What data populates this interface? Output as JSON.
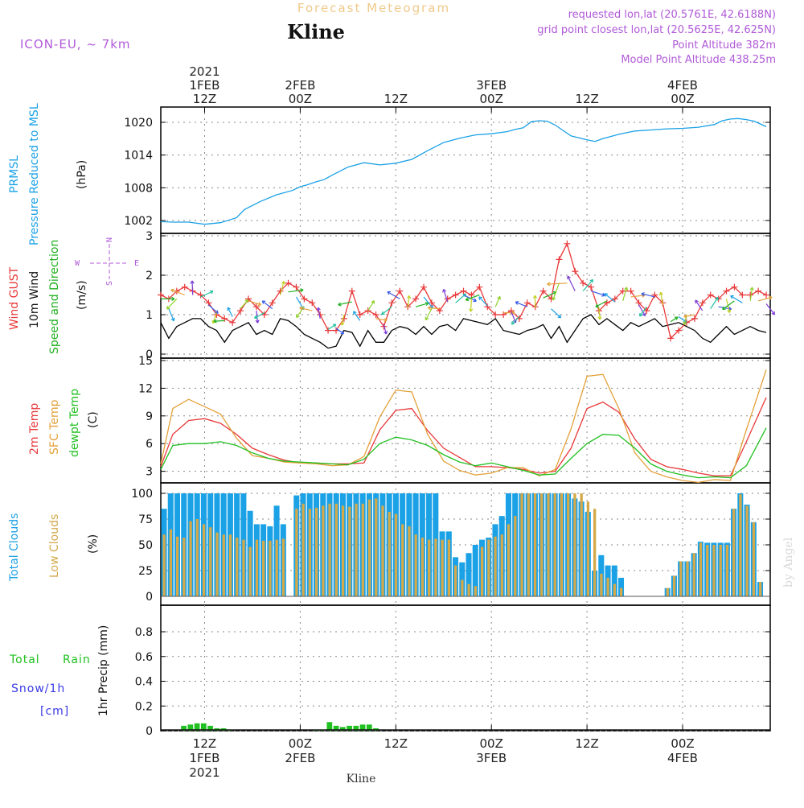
{
  "header": {
    "product": "Forecast Meteogram",
    "location": "Kline",
    "model": "ICON-EU, ~ 7km",
    "requested": "requested lon,lat (20.5761E, 42.6188N)",
    "closest": "grid point closest lon,lat (20.5625E, 42.625N)",
    "point_alt": "Point Altitude 382m",
    "model_alt": "Model Point Altitude 438.25m",
    "footer": "Kline",
    "watermark": "by Angel"
  },
  "colors": {
    "pressure": "#1ba1e6",
    "gust": "#e8393a",
    "wind10": "#000000",
    "dir": "#20b020",
    "t2m": "#e8393a",
    "sfc": "#e3a13a",
    "dew": "#20c020",
    "total_clouds": "#1ba1e6",
    "low_clouds": "#d4a94a",
    "rain": "#20c020",
    "snow": "#3a3ae6",
    "purple": "#b05ad8"
  },
  "time_axis": {
    "top_labels": [
      {
        "t": 0,
        "lines": [
          "2021",
          "1FEB",
          "12Z"
        ]
      },
      {
        "t": 12,
        "lines": [
          "2FEB",
          "00Z"
        ]
      },
      {
        "t": 24,
        "lines": [
          "12Z"
        ]
      },
      {
        "t": 36,
        "lines": [
          "3FEB",
          "00Z"
        ]
      },
      {
        "t": 48,
        "lines": [
          "12Z"
        ]
      },
      {
        "t": 60,
        "lines": [
          "4FEB",
          "00Z"
        ]
      }
    ],
    "bottom_labels": [
      {
        "t": 0,
        "lines": [
          "12Z",
          "1FEB",
          "2021"
        ]
      },
      {
        "t": 12,
        "lines": [
          "00Z",
          "2FEB"
        ]
      },
      {
        "t": 24,
        "lines": [
          "12Z"
        ]
      },
      {
        "t": 36,
        "lines": [
          "00Z",
          "3FEB"
        ]
      },
      {
        "t": 48,
        "lines": [
          "12Z"
        ]
      },
      {
        "t": 60,
        "lines": [
          "00Z",
          "4FEB"
        ]
      }
    ]
  },
  "panels": {
    "pressure": {
      "labels": [
        "PRMSL",
        "Pressure Reduced to MSL",
        "(hPa)"
      ]
    },
    "wind": {
      "labels": [
        "Wind GUST",
        "10m Wind",
        "Speed and Direction",
        "(m/s)"
      ],
      "compass": {
        "n": "N",
        "s": "S",
        "e": "E",
        "w": "W"
      }
    },
    "temp": {
      "labels": [
        "2m Temp",
        "SFC Temp",
        "dewpt Temp",
        "(C)"
      ]
    },
    "clouds": {
      "labels": [
        "Total Clouds",
        "Low Clouds",
        "(%)"
      ]
    },
    "precip": {
      "labels": [
        "1hr Precip (mm)",
        "Total",
        "Rain",
        "Snow/1h",
        "[cm]"
      ]
    }
  },
  "chart_data": [
    {
      "name": "pressure",
      "type": "line",
      "title": "PRMSL Pressure Reduced to MSL",
      "ylabel": "(hPa)",
      "x_hours_from_1FEB12Z": [
        -5.5,
        -4,
        -2,
        0,
        2,
        4,
        5,
        7,
        9,
        11,
        12,
        13,
        14,
        15,
        16,
        18,
        20,
        22,
        24,
        26,
        28,
        30,
        32,
        34,
        36,
        37,
        38,
        39,
        40,
        41,
        42,
        43,
        44,
        46,
        48,
        49,
        50,
        52,
        54,
        56,
        58,
        60,
        62,
        64,
        65,
        66,
        67,
        68,
        69,
        70.5
      ],
      "values": [
        1001.8,
        1001.7,
        1001.7,
        1001.3,
        1001.6,
        1002.5,
        1004.0,
        1005.5,
        1006.7,
        1007.5,
        1008.2,
        1008.6,
        1009.1,
        1009.5,
        1010.3,
        1011.8,
        1012.6,
        1012.2,
        1012.5,
        1013.2,
        1014.8,
        1016.3,
        1017.1,
        1017.7,
        1017.9,
        1018.1,
        1018.3,
        1018.7,
        1019.0,
        1020.1,
        1020.3,
        1020.2,
        1019.5,
        1017.5,
        1016.8,
        1016.5,
        1017.0,
        1017.8,
        1018.4,
        1018.6,
        1018.8,
        1018.9,
        1019.1,
        1019.6,
        1020.3,
        1020.6,
        1020.7,
        1020.5,
        1020.2,
        1019.2
      ],
      "yticks": [
        1002,
        1008,
        1014,
        1020
      ],
      "ylim": [
        1001,
        1021
      ]
    },
    {
      "name": "wind",
      "type": "line",
      "ylabel": "(m/s)",
      "ylim": [
        0,
        3
      ],
      "yticks": [
        0,
        1,
        2,
        3
      ],
      "x_hours_from_1FEB12Z": [
        -5.5,
        -4.5,
        -3.5,
        -2.5,
        -1.5,
        -0.5,
        0.5,
        1.5,
        2.5,
        3.5,
        4.5,
        5.5,
        6.5,
        7.5,
        8.5,
        9.5,
        10.5,
        11.5,
        12.5,
        13.5,
        14.5,
        15.5,
        16.5,
        17.5,
        18.5,
        19.5,
        20.5,
        21.5,
        22.5,
        23.5,
        24.5,
        25.5,
        26.5,
        27.5,
        28.5,
        29.5,
        30.5,
        31.5,
        32.5,
        33.5,
        34.5,
        35.5,
        36.5,
        37.5,
        38.5,
        39.5,
        40.5,
        41.5,
        42.5,
        43.5,
        44.5,
        45.5,
        46.5,
        47.5,
        48.5,
        49.5,
        50.5,
        51.5,
        52.5,
        53.5,
        54.5,
        55.5,
        56.5,
        57.5,
        58.5,
        59.5,
        60.5,
        61.5,
        62.5,
        63.5,
        64.5,
        65.5,
        66.5,
        67.5,
        68.5,
        69.5,
        70.5
      ],
      "series": [
        {
          "name": "10m Wind",
          "values": [
            0.8,
            0.4,
            0.7,
            0.8,
            0.9,
            0.9,
            0.7,
            0.6,
            0.3,
            0.6,
            0.7,
            0.8,
            0.5,
            0.6,
            0.5,
            0.9,
            0.85,
            0.7,
            0.5,
            0.4,
            0.3,
            0.15,
            0.2,
            0.6,
            0.55,
            0.2,
            0.6,
            0.3,
            0.3,
            0.6,
            0.7,
            0.65,
            0.5,
            0.7,
            0.5,
            0.7,
            0.75,
            0.6,
            0.9,
            0.85,
            0.8,
            0.75,
            0.9,
            0.6,
            0.55,
            0.5,
            0.6,
            0.65,
            0.75,
            0.4,
            0.7,
            0.3,
            0.6,
            0.9,
            1.0,
            0.75,
            0.9,
            0.75,
            0.6,
            0.8,
            0.7,
            0.8,
            0.9,
            0.7,
            0.75,
            0.8,
            0.7,
            0.6,
            0.4,
            0.3,
            0.5,
            0.7,
            0.5,
            0.6,
            0.7,
            0.6,
            0.55
          ]
        },
        {
          "name": "Wind GUST",
          "values": [
            1.5,
            1.4,
            1.6,
            1.7,
            1.6,
            1.5,
            1.3,
            1.0,
            0.9,
            0.8,
            1.1,
            1.4,
            1.2,
            1.0,
            1.3,
            1.6,
            1.8,
            1.7,
            1.4,
            1.3,
            1.0,
            0.6,
            0.6,
            0.9,
            1.6,
            1.0,
            1.1,
            1.0,
            0.7,
            1.3,
            1.6,
            1.2,
            1.4,
            1.7,
            1.3,
            1.1,
            1.4,
            1.5,
            1.6,
            1.5,
            1.7,
            1.2,
            1.0,
            1.0,
            1.1,
            0.9,
            1.3,
            1.2,
            1.6,
            1.4,
            2.4,
            2.8,
            2.1,
            1.8,
            1.7,
            1.1,
            1.3,
            1.4,
            1.6,
            1.6,
            1.3,
            1.1,
            1.5,
            1.3,
            0.4,
            0.6,
            0.8,
            0.9,
            1.3,
            1.5,
            1.4,
            1.6,
            1.7,
            1.5,
            1.5,
            1.6,
            1.5
          ]
        }
      ]
    },
    {
      "name": "temperature",
      "type": "line",
      "ylabel": "(C)",
      "ylim": [
        0.8,
        15
      ],
      "yticks": [
        3,
        6,
        9,
        12,
        15
      ],
      "x_hours_from_1FEB12Z": [
        -5.5,
        -4,
        -2,
        0,
        2,
        4,
        6,
        8,
        10,
        12,
        14,
        16,
        18,
        20,
        22,
        24,
        26,
        28,
        30,
        32,
        34,
        36,
        38,
        40,
        42,
        44,
        46,
        48,
        50,
        52,
        54,
        56,
        58,
        60,
        62,
        64,
        66,
        68,
        70.5
      ],
      "series": [
        {
          "name": "2m Temp",
          "values": [
            3.5,
            7.0,
            8.5,
            8.7,
            8.2,
            7.0,
            5.5,
            4.8,
            4.2,
            3.9,
            3.9,
            3.8,
            3.8,
            3.9,
            7.5,
            9.6,
            9.8,
            7.4,
            5.5,
            4.5,
            3.5,
            3.5,
            3.4,
            3.2,
            2.8,
            3.0,
            5.5,
            9.8,
            10.5,
            9.4,
            6.5,
            4.3,
            3.5,
            3.2,
            2.8,
            2.5,
            2.5,
            6.2,
            11.0
          ]
        },
        {
          "name": "SFC Temp",
          "values": [
            3.8,
            9.8,
            10.8,
            10.0,
            9.2,
            6.6,
            4.7,
            4.4,
            4.0,
            3.9,
            3.8,
            3.6,
            3.7,
            4.6,
            8.9,
            11.8,
            11.6,
            7.0,
            4.1,
            3.1,
            2.6,
            2.8,
            3.4,
            3.4,
            2.5,
            3.2,
            7.6,
            13.3,
            13.5,
            9.8,
            5.0,
            3.0,
            2.4,
            2.0,
            1.8,
            2.1,
            2.0,
            7.5,
            14.0
          ]
        },
        {
          "name": "dewpt Temp",
          "values": [
            3.2,
            5.8,
            6.0,
            6.0,
            6.2,
            5.8,
            5.0,
            4.4,
            4.1,
            4.0,
            3.9,
            3.8,
            3.7,
            4.3,
            6.0,
            6.7,
            6.4,
            5.8,
            4.8,
            4.0,
            3.6,
            3.9,
            3.5,
            3.1,
            2.6,
            2.7,
            4.4,
            6.0,
            7.0,
            6.9,
            5.5,
            3.8,
            3.0,
            2.6,
            2.3,
            2.4,
            2.3,
            3.6,
            7.7
          ]
        }
      ]
    },
    {
      "name": "clouds",
      "type": "bar",
      "ylabel": "(%)",
      "ylim": [
        0,
        100
      ],
      "yticks": [
        0,
        25,
        50,
        75,
        100
      ],
      "x_hours_from_1FEB12Z_start": -5.5,
      "series": [
        {
          "name": "Total Clouds",
          "values": [
            85,
            100,
            100,
            100,
            100,
            100,
            100,
            100,
            100,
            100,
            100,
            100,
            100,
            83,
            70,
            70,
            68,
            88,
            70,
            0,
            98,
            100,
            100,
            100,
            100,
            100,
            100,
            100,
            100,
            100,
            100,
            100,
            100,
            100,
            100,
            100,
            100,
            100,
            100,
            100,
            100,
            100,
            63,
            63,
            38,
            33,
            42,
            50,
            55,
            57,
            70,
            78,
            100,
            100,
            100,
            100,
            100,
            100,
            100,
            100,
            100,
            100,
            95,
            92,
            82,
            25,
            40,
            30,
            30,
            18,
            0,
            0,
            0,
            0,
            0,
            0,
            8,
            20,
            34,
            34,
            42,
            53,
            52,
            52,
            52,
            52,
            85,
            100,
            89,
            72,
            14,
            0
          ]
        },
        {
          "name": "Low Clouds",
          "values": [
            60,
            65,
            58,
            57,
            73,
            75,
            70,
            67,
            62,
            60,
            60,
            57,
            55,
            48,
            55,
            54,
            54,
            55,
            56,
            0,
            85,
            90,
            85,
            86,
            88,
            90,
            90,
            88,
            87,
            90,
            90,
            94,
            95,
            88,
            82,
            80,
            70,
            68,
            60,
            57,
            55,
            56,
            55,
            55,
            30,
            16,
            12,
            10,
            48,
            55,
            58,
            60,
            70,
            78,
            100,
            100,
            100,
            100,
            100,
            100,
            100,
            100,
            100,
            100,
            92,
            85,
            22,
            18,
            12,
            8,
            0,
            0,
            0,
            0,
            0,
            0,
            8,
            20,
            34,
            34,
            42,
            52,
            50,
            50,
            50,
            50,
            85,
            99,
            88,
            72,
            14,
            0
          ]
        }
      ]
    },
    {
      "name": "precip",
      "type": "bar",
      "ylabel": "1hr Precip (mm)",
      "ylim": [
        0,
        1
      ],
      "yticks": [
        0,
        0.2,
        0.4,
        0.6,
        0.8
      ],
      "x_hours_from_1FEB12Z_start": -5.5,
      "series": [
        {
          "name": "Total Rain",
          "values": [
            0,
            0,
            0,
            0.04,
            0.05,
            0.06,
            0.06,
            0.04,
            0.02,
            0.02,
            0.01,
            0,
            0,
            0,
            0,
            0,
            0,
            0,
            0,
            0,
            0,
            0,
            0,
            0.01,
            0.01,
            0.07,
            0.04,
            0.03,
            0.04,
            0.04,
            0.05,
            0.05,
            0.02,
            0,
            0,
            0,
            0,
            0,
            0,
            0,
            0,
            0,
            0,
            0,
            0,
            0,
            0,
            0,
            0,
            0,
            0,
            0,
            0,
            0,
            0,
            0,
            0,
            0,
            0,
            0,
            0,
            0,
            0,
            0,
            0,
            0,
            0,
            0,
            0,
            0,
            0,
            0,
            0,
            0,
            0,
            0,
            0,
            0,
            0,
            0,
            0,
            0,
            0,
            0,
            0,
            0,
            0,
            0,
            0,
            0,
            0,
            0
          ]
        },
        {
          "name": "Snow/1h",
          "values": []
        }
      ]
    }
  ]
}
